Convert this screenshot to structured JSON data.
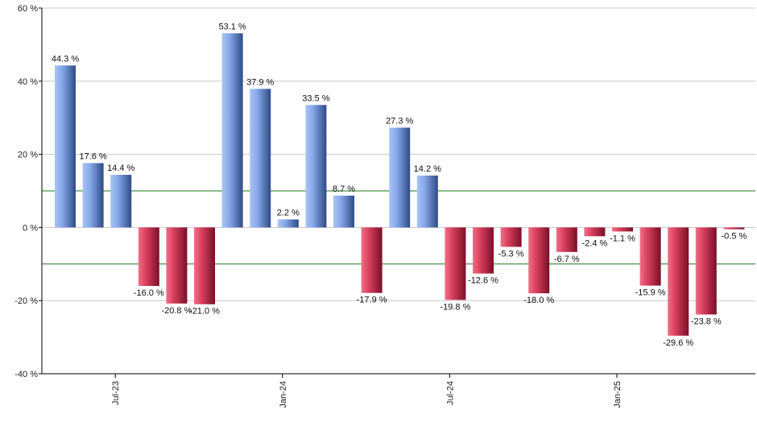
{
  "chart_data": {
    "type": "bar",
    "title": "",
    "xlabel": "",
    "ylabel": "",
    "ylim": [
      -40,
      60
    ],
    "yticks": [
      -40,
      -20,
      0,
      20,
      40,
      60
    ],
    "ytick_labels": [
      "-40 %",
      "-20 %",
      "0 %",
      "20 %",
      "40 %",
      "60 %"
    ],
    "grid": true,
    "reference_lines": [
      10,
      -10
    ],
    "colors": {
      "positive": "#7fa3e8",
      "negative": "#d9405e",
      "reference_line": "#1a7a1a",
      "grid": "#c8c8c8",
      "axis": "#000000"
    },
    "values": [
      44.3,
      17.6,
      14.4,
      -16.0,
      -20.8,
      -21.0,
      53.1,
      37.9,
      2.2,
      33.5,
      8.7,
      -17.9,
      27.3,
      14.2,
      -19.8,
      -12.6,
      -5.3,
      -18.0,
      -6.7,
      -2.4,
      -1.1,
      -15.9,
      -29.6,
      -23.8,
      -0.5
    ],
    "labels": [
      "44.3 %",
      "17.6 %",
      "14.4 %",
      "-16.0 %",
      "-20.8 %",
      "-21.0 %",
      "53.1 %",
      "37.9 %",
      "2.2 %",
      "33.5 %",
      "8.7 %",
      "-17.9 %",
      "27.3 %",
      "14.2 %",
      "-19.8 %",
      "-12.6 %",
      "-5.3 %",
      "-18.0 %",
      "-6.7 %",
      "-2.4 %",
      "-1.1 %",
      "-15.9 %",
      "-29.6 %",
      "-23.8 %",
      "-0.5 %"
    ],
    "x_ticks": [
      {
        "label": "Jul-23",
        "index": 2
      },
      {
        "label": "Jan-24",
        "index": 8
      },
      {
        "label": "Jul-24",
        "index": 14
      },
      {
        "label": "Jan-25",
        "index": 20
      }
    ]
  }
}
